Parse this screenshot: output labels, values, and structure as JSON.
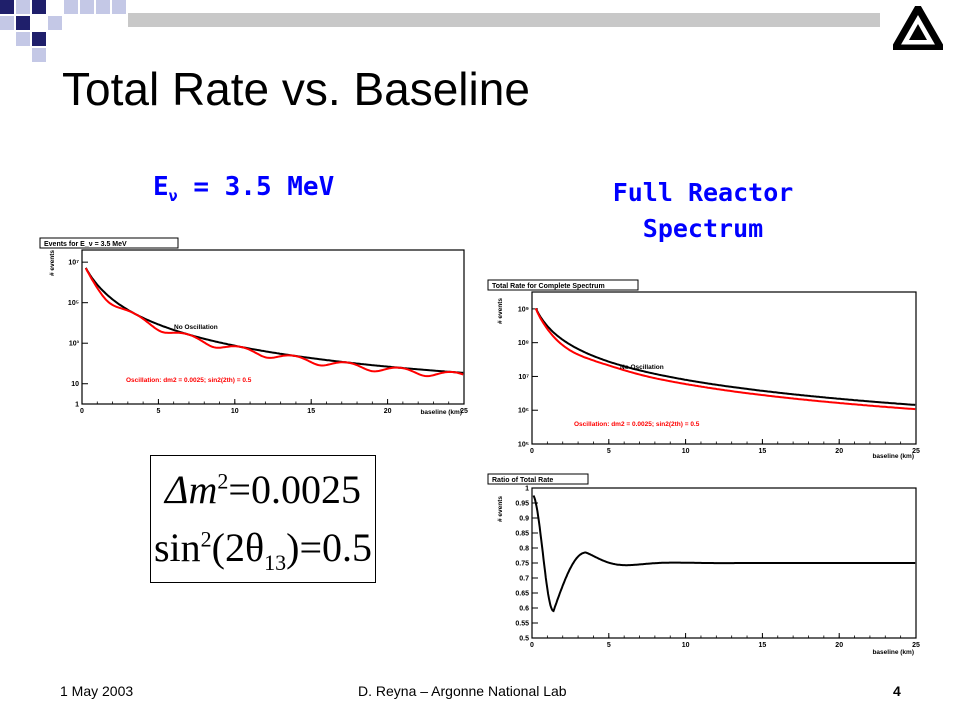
{
  "slide": {
    "title": "Total Rate vs. Baseline",
    "subtitle_left_prefix": "E",
    "subtitle_left_sub": "ν",
    "subtitle_left_rest": " = 3.5 MeV",
    "subtitle_right_line1": "Full Reactor",
    "subtitle_right_line2": "Spectrum",
    "formula": {
      "line1_lhs": "Δm",
      "line1_exp": "2",
      "line1_rhs": "=0.0025",
      "line2_fn": "sin",
      "line2_exp": "2",
      "line2_arg_open": "(2θ",
      "line2_arg_sub": "13",
      "line2_arg_close": ")",
      "line2_rhs": "=0.5"
    }
  },
  "footer": {
    "date": "1 May 2003",
    "center": "D. Reyna – Argonne National Lab",
    "page": "4"
  },
  "colors": {
    "accent_blue": "#0000ff",
    "no_osc": "#000000",
    "osc": "#ff0000",
    "decor_navy": "#1f1f6b",
    "decor_light": "#c4c8e6",
    "rule_gray": "#c8c8c8"
  },
  "chart_data": [
    {
      "type": "line",
      "title": "Events for E_ν = 3.5 MeV",
      "xlabel": "baseline (km)",
      "ylabel": "# events",
      "x_ticks": [
        "0",
        "5",
        "10",
        "15",
        "20",
        "25"
      ],
      "y_ticks": [
        "1",
        "10",
        "10³",
        "10⁵",
        "10⁷"
      ],
      "xlim": [
        0,
        25
      ],
      "ylim_log10": [
        0,
        7.6
      ],
      "log_y": true,
      "series": [
        {
          "name": "No Oscillation",
          "color": "#000000"
        },
        {
          "name": "Oscillation: dm2 = 0.0025; sin2(2th) = 0.5",
          "color": "#ff0000"
        }
      ]
    },
    {
      "type": "line",
      "title": "Total Rate for Complete Spectrum",
      "xlabel": "baseline (km)",
      "ylabel": "# events",
      "x_ticks": [
        "0",
        "5",
        "10",
        "15",
        "20",
        "25"
      ],
      "y_ticks": [
        "10⁵",
        "10⁶",
        "10⁷",
        "10⁸",
        "10⁹"
      ],
      "xlim": [
        0,
        25
      ],
      "ylim_log10": [
        5,
        9.5
      ],
      "log_y": true,
      "series": [
        {
          "name": "No Oscillation",
          "color": "#000000"
        },
        {
          "name": "Oscillation: dm2 = 0.0025; sin2(2th) = 0.5",
          "color": "#ff0000"
        }
      ]
    },
    {
      "type": "line",
      "title": "Ratio of Total Rate",
      "xlabel": "baseline (km)",
      "ylabel": "# events",
      "x_ticks": [
        "0",
        "5",
        "10",
        "15",
        "20",
        "25"
      ],
      "y_ticks": [
        "0.5",
        "0.55",
        "0.6",
        "0.65",
        "0.7",
        "0.75",
        "0.8",
        "0.85",
        "0.9",
        "0.95",
        "1"
      ],
      "xlim": [
        0,
        25
      ],
      "ylim": [
        0.5,
        1.0
      ],
      "log_y": false,
      "series": [
        {
          "name": "Ratio",
          "color": "#000000"
        }
      ]
    }
  ]
}
